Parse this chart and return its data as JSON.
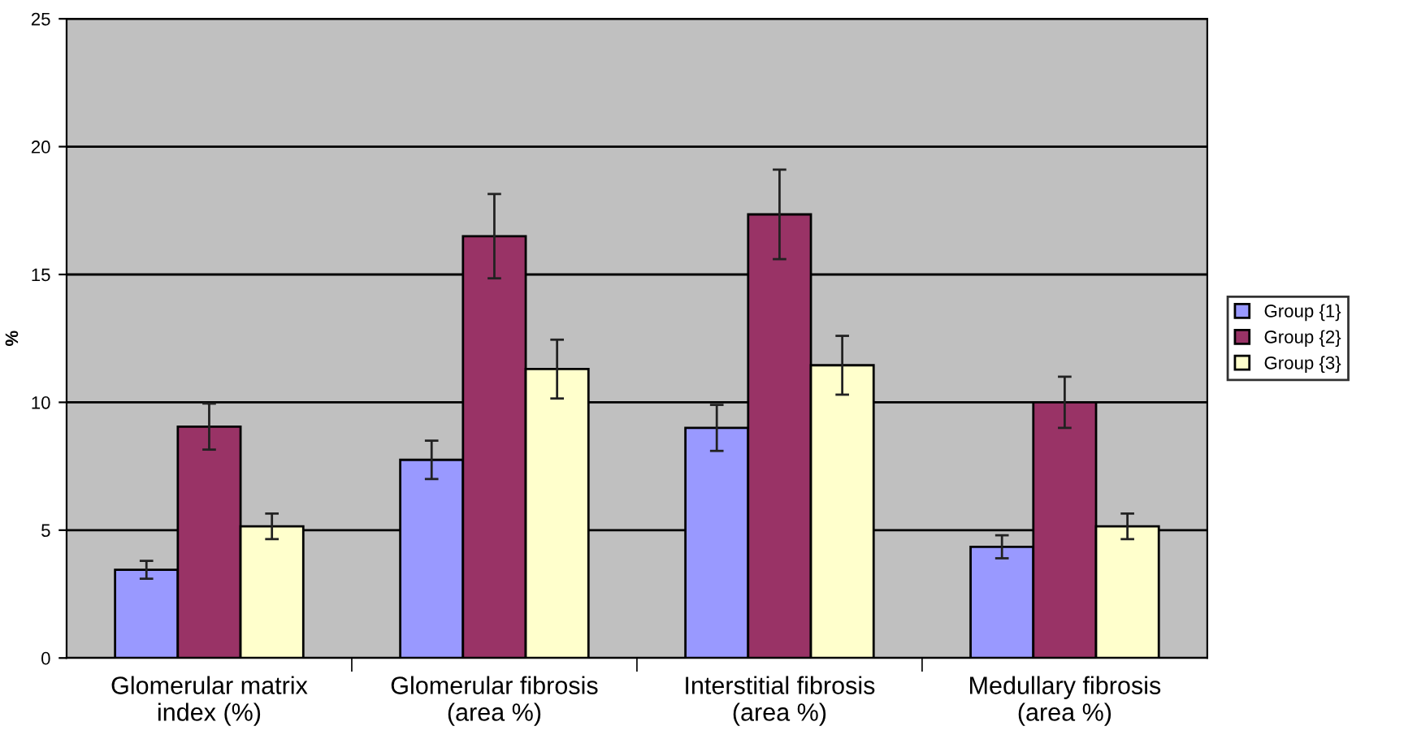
{
  "chart_data": {
    "type": "bar",
    "ylabel": "%",
    "categories": [
      "Glomerular matrix\nindex (%)",
      "Glomerular fibrosis\n(area %)",
      "Interstitial fibrosis\n(area %)",
      "Medullary fibrosis\n(area %)"
    ],
    "series": [
      {
        "name": "Group {1}",
        "color": "#9999ff",
        "values": [
          3.45,
          7.75,
          9.0,
          4.35
        ],
        "errors": [
          0.35,
          0.75,
          0.9,
          0.45
        ]
      },
      {
        "name": "Group {2}",
        "color": "#993366",
        "values": [
          9.05,
          16.5,
          17.35,
          10.0
        ],
        "errors": [
          0.9,
          1.65,
          1.75,
          1.0
        ]
      },
      {
        "name": "Group {3}",
        "color": "#ffffcc",
        "values": [
          5.15,
          11.3,
          11.45,
          5.15
        ],
        "errors": [
          0.5,
          1.15,
          1.15,
          0.5
        ]
      }
    ],
    "ylim": [
      0,
      25
    ],
    "yticks": [
      0,
      5,
      10,
      15,
      20,
      25
    ],
    "grid": "y",
    "legend": "right"
  }
}
